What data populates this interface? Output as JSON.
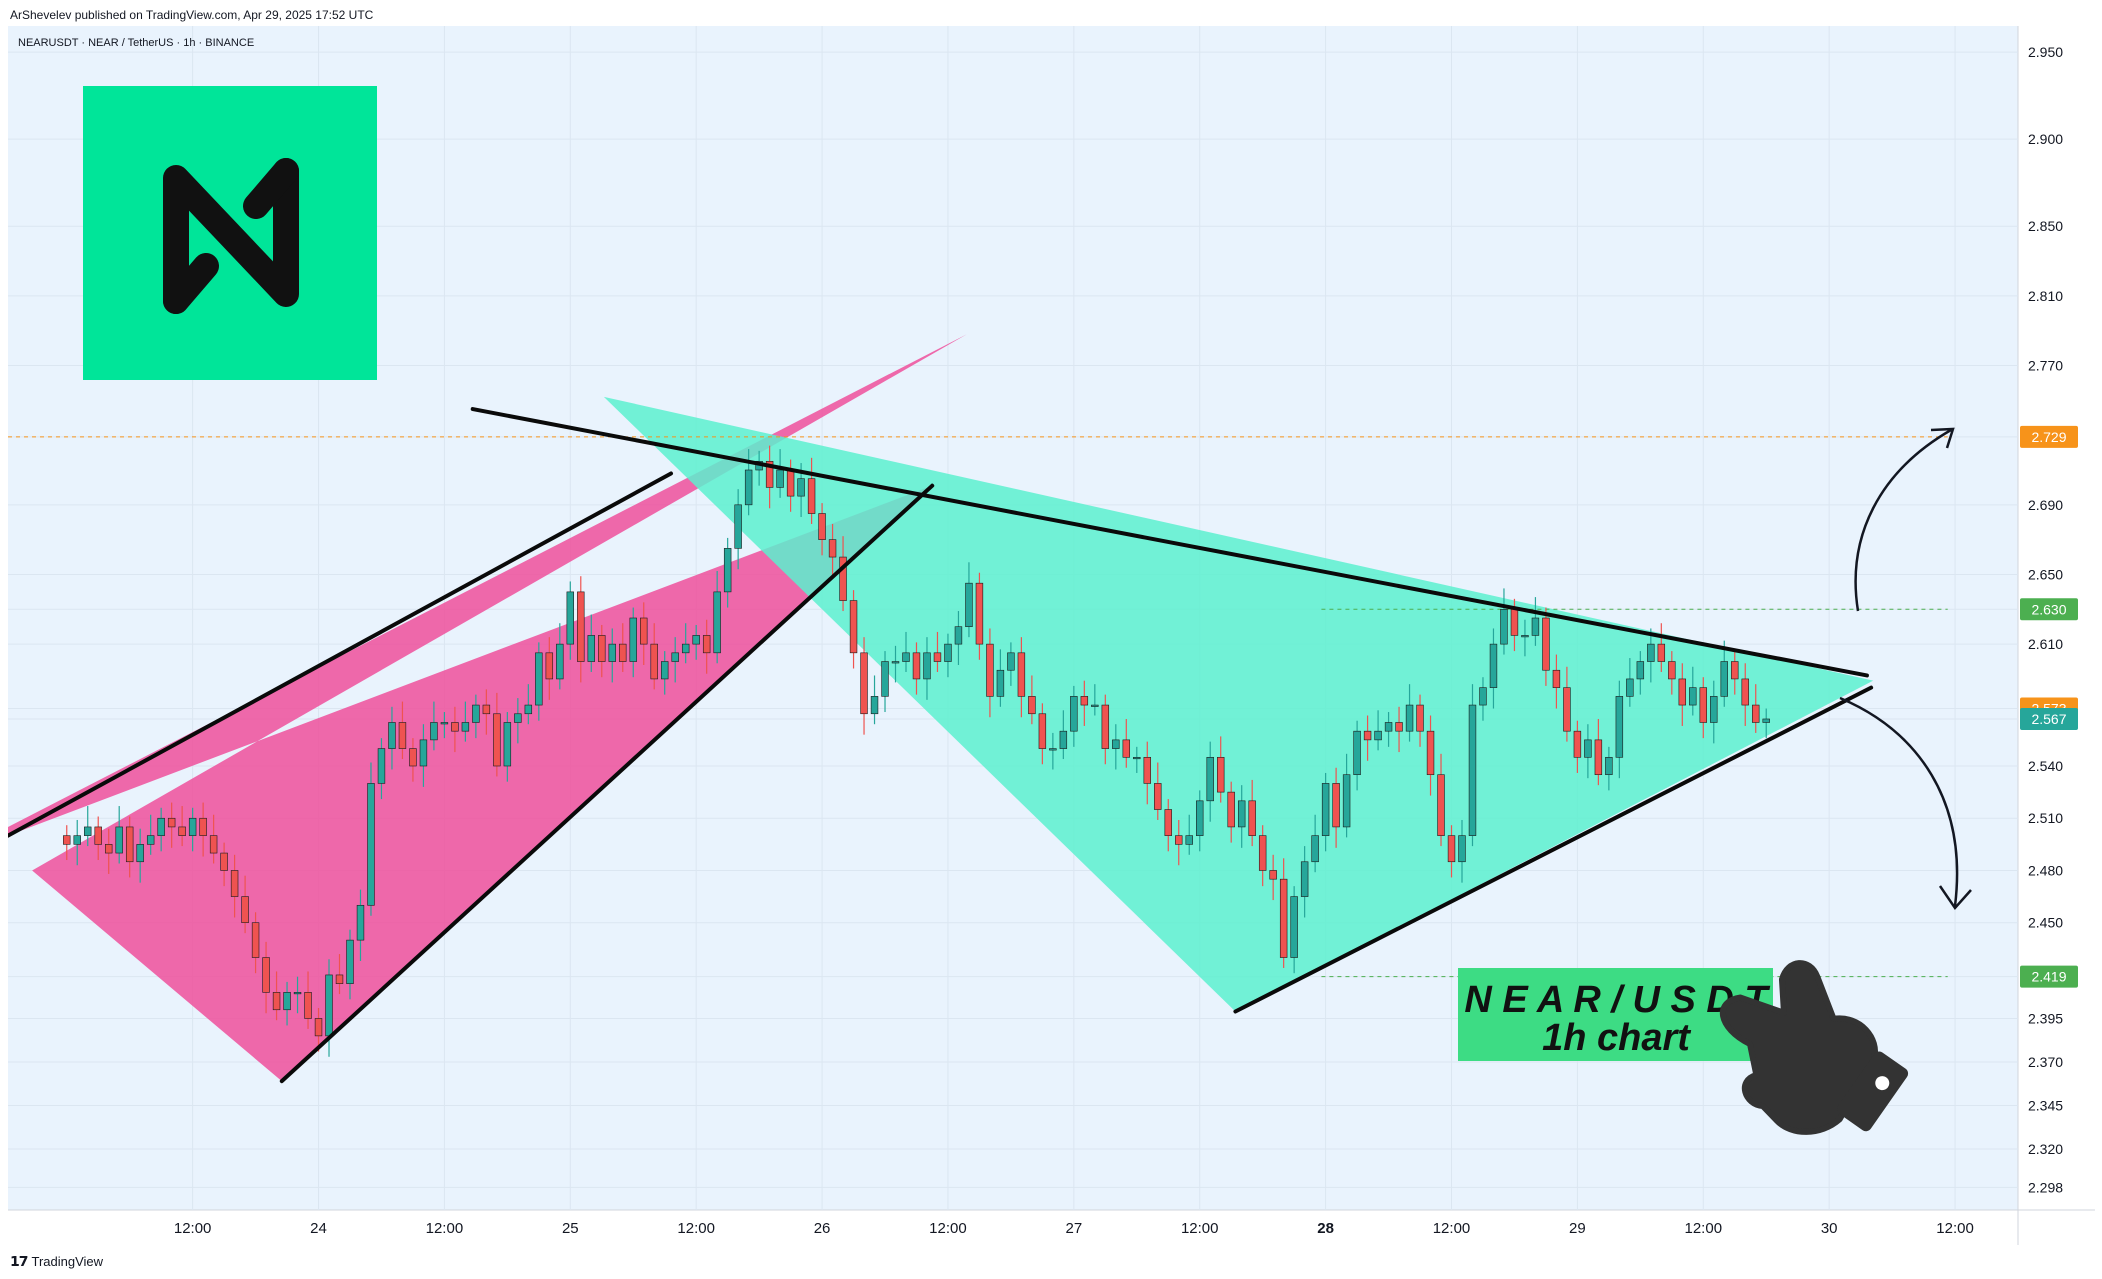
{
  "header": {
    "published": "ArShevelev published on TradingView.com, Apr 29, 2025 17:52 UTC"
  },
  "chart_info": {
    "symbol": "NEARUSDT · NEAR / TetherUS · 1h · BINANCE"
  },
  "footer": {
    "brand": "TradingView"
  },
  "overlay": {
    "line1": "N E A R / U S D T",
    "line2": "1h chart"
  },
  "colors": {
    "up": "#26a69a",
    "down": "#ef5350",
    "background": "#e9f3fd",
    "pink": "#ef4f9b",
    "mint": "#5cf0cf",
    "near_green": "#00e599"
  },
  "chart_data": {
    "type": "candlestick",
    "ylim": [
      2.285,
      2.965
    ],
    "price_ticks": [
      "2.950",
      "2.900",
      "2.850",
      "2.810",
      "2.770",
      "2.729",
      "2.690",
      "2.650",
      "2.630",
      "2.610",
      "2.573",
      "2.567",
      "2.540",
      "2.510",
      "2.480",
      "2.450",
      "2.419",
      "2.395",
      "2.370",
      "2.345",
      "2.320",
      "2.298"
    ],
    "price_labels": [
      {
        "value": 2.729,
        "text": "2.729",
        "color": "#f7931a"
      },
      {
        "value": 2.63,
        "text": "2.630",
        "color": "#4caf50"
      },
      {
        "value": 2.573,
        "text": "2.573",
        "color": "#f7931a"
      },
      {
        "value": 2.567,
        "text": "2.567",
        "color": "#26a69a"
      },
      {
        "value": 2.419,
        "text": "2.419",
        "color": "#4caf50"
      }
    ],
    "x_labels": [
      {
        "t": 12,
        "text": "12:00"
      },
      {
        "t": 24,
        "text": "24"
      },
      {
        "t": 36,
        "text": "12:00"
      },
      {
        "t": 48,
        "text": "25"
      },
      {
        "t": 60,
        "text": "12:00"
      },
      {
        "t": 72,
        "text": "26"
      },
      {
        "t": 84,
        "text": "12:00"
      },
      {
        "t": 96,
        "text": "27"
      },
      {
        "t": 108,
        "text": "12:00"
      },
      {
        "t": 120,
        "text": "28",
        "bold": true
      },
      {
        "t": 132,
        "text": "12:00"
      },
      {
        "t": 144,
        "text": "29"
      },
      {
        "t": 156,
        "text": "12:00"
      },
      {
        "t": 168,
        "text": "30"
      },
      {
        "t": 180,
        "text": "12:00"
      }
    ],
    "x_range": [
      -5.6,
      186
    ],
    "candles_start_t": 0,
    "closes": [
      2.495,
      2.5,
      2.505,
      2.495,
      2.49,
      2.505,
      2.485,
      2.495,
      2.5,
      2.51,
      2.505,
      2.5,
      2.51,
      2.5,
      2.49,
      2.48,
      2.465,
      2.45,
      2.43,
      2.41,
      2.4,
      2.41,
      2.41,
      2.395,
      2.385,
      2.42,
      2.415,
      2.44,
      2.46,
      2.53,
      2.55,
      2.565,
      2.55,
      2.54,
      2.555,
      2.565,
      2.565,
      2.56,
      2.565,
      2.575,
      2.57,
      2.54,
      2.565,
      2.57,
      2.575,
      2.605,
      2.59,
      2.61,
      2.64,
      2.6,
      2.615,
      2.6,
      2.61,
      2.6,
      2.625,
      2.61,
      2.59,
      2.6,
      2.605,
      2.61,
      2.615,
      2.605,
      2.64,
      2.665,
      2.69,
      2.71,
      2.715,
      2.7,
      2.71,
      2.695,
      2.705,
      2.685,
      2.67,
      2.66,
      2.635,
      2.605,
      2.57,
      2.58,
      2.6,
      2.6,
      2.605,
      2.59,
      2.605,
      2.6,
      2.61,
      2.62,
      2.645,
      2.61,
      2.58,
      2.595,
      2.605,
      2.58,
      2.57,
      2.55,
      2.55,
      2.56,
      2.58,
      2.575,
      2.575,
      2.55,
      2.555,
      2.545,
      2.545,
      2.53,
      2.515,
      2.5,
      2.495,
      2.5,
      2.52,
      2.545,
      2.525,
      2.505,
      2.52,
      2.5,
      2.48,
      2.475,
      2.43,
      2.465,
      2.485,
      2.5,
      2.53,
      2.505,
      2.535,
      2.56,
      2.555,
      2.56,
      2.565,
      2.56,
      2.575,
      2.56,
      2.535,
      2.5,
      2.485,
      2.5,
      2.575,
      2.585,
      2.61,
      2.63,
      2.615,
      2.615,
      2.625,
      2.595,
      2.585,
      2.56,
      2.545,
      2.555,
      2.535,
      2.545,
      2.58,
      2.59,
      2.6,
      2.61,
      2.6,
      2.59,
      2.575,
      2.585,
      2.565,
      2.58,
      2.6,
      2.59,
      2.575,
      2.565,
      2.567
    ],
    "trendlines": [
      {
        "name": "rising-wedge-upper",
        "points": [
          [
            -5.6,
            2.5
          ],
          [
            57.6,
            2.708
          ]
        ]
      },
      {
        "name": "rising-wedge-lower",
        "points": [
          [
            20.5,
            2.359
          ],
          [
            82.5,
            2.701
          ]
        ]
      },
      {
        "name": "triangle-upper",
        "points": [
          [
            38.7,
            2.745
          ],
          [
            171.6,
            2.592
          ]
        ]
      },
      {
        "name": "triangle-lower",
        "points": [
          [
            111.4,
            2.399
          ],
          [
            172.0,
            2.585
          ]
        ]
      }
    ],
    "pink_polygon": [
      [
        -5.6,
        2.5
      ],
      [
        82.5,
        2.701
      ],
      [
        20.5,
        2.359
      ],
      [
        -3.3,
        2.48
      ],
      [
        85.8,
        2.788
      ],
      [
        -5.6,
        2.505
      ]
    ],
    "mint_polygon": [
      [
        51.2,
        2.752
      ],
      [
        172.2,
        2.589
      ],
      [
        111.4,
        2.399
      ]
    ],
    "h_lines": [
      {
        "value": 2.729,
        "from": -5.6,
        "to": 179.3,
        "color": "#f7931a"
      },
      {
        "value": 2.63,
        "from": 119.6,
        "to": 179.3,
        "color": "#4caf50"
      },
      {
        "value": 2.419,
        "from": 119.6,
        "to": 179.3,
        "color": "#4caf50"
      }
    ]
  }
}
